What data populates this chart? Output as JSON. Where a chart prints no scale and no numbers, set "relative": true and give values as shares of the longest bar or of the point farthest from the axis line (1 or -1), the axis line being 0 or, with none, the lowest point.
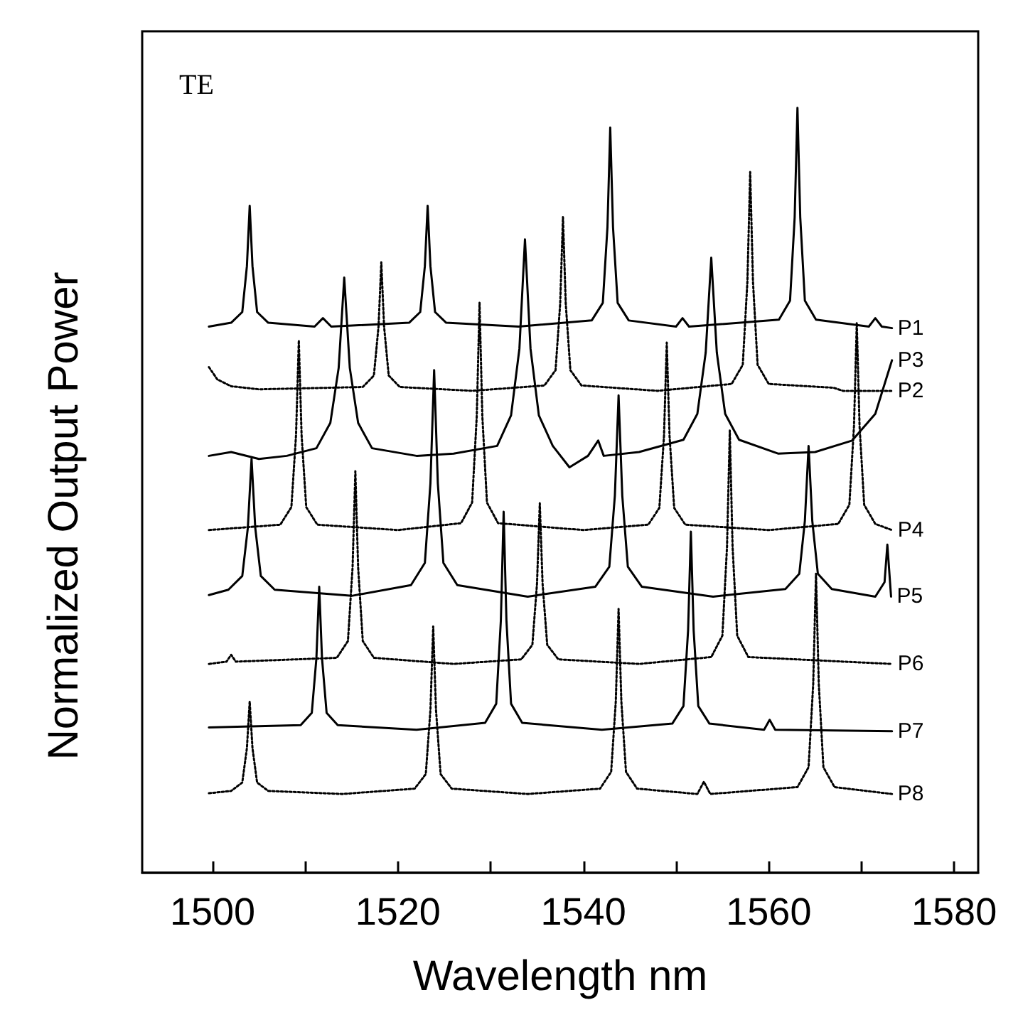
{
  "chart_data": {
    "type": "line",
    "relative": true,
    "xlabel": "Wavelength nm",
    "ylabel": "Normalized Output Power",
    "annotations": [
      "TE"
    ],
    "xlim": [
      1492.4,
      1582.6
    ],
    "xticks": [
      1500,
      {
        "value": 1510,
        "label": null
      },
      1520,
      {
        "value": 1530,
        "label": null
      },
      1540,
      {
        "value": 1550,
        "label": null
      },
      1560,
      {
        "value": 1570,
        "label": null
      },
      1580
    ],
    "grid": false,
    "legend": false,
    "marker": "none",
    "series": [
      {
        "name": "P1",
        "color": "#000000",
        "line_style": "solid",
        "x": [
          1499.6,
          1502.0,
          1503.2,
          1503.7,
          1504.0,
          1504.3,
          1504.8,
          1506.0,
          1511.0,
          1511.9,
          1512.8,
          1521.2,
          1522.4,
          1522.9,
          1523.2,
          1523.5,
          1524.0,
          1525.2,
          1533.0,
          1540.9,
          1542.1,
          1542.6,
          1542.9,
          1543.2,
          1543.7,
          1544.9,
          1550.0,
          1550.7,
          1551.4,
          1561.1,
          1562.3,
          1562.8,
          1563.1,
          1563.4,
          1563.9,
          1565.1,
          1570.8,
          1571.5,
          1572.2,
          1573.3
        ],
        "values": [
          0.714,
          0.719,
          0.733,
          0.793,
          0.872,
          0.793,
          0.733,
          0.719,
          0.714,
          0.725,
          0.714,
          0.719,
          0.733,
          0.793,
          0.872,
          0.793,
          0.733,
          0.719,
          0.714,
          0.722,
          0.745,
          0.844,
          0.974,
          0.844,
          0.745,
          0.722,
          0.714,
          0.725,
          0.714,
          0.723,
          0.748,
          0.857,
          1.0,
          0.857,
          0.748,
          0.723,
          0.714,
          0.725,
          0.714,
          0.712
        ]
      },
      {
        "name": "P2",
        "color": "#000000",
        "line_style": "dotted",
        "x": [
          1499.6,
          1500.5,
          1502.0,
          1505.0,
          1516.2,
          1517.4,
          1517.9,
          1518.2,
          1518.5,
          1519.0,
          1520.2,
          1528.0,
          1535.8,
          1537.0,
          1537.5,
          1537.8,
          1538.1,
          1538.6,
          1539.8,
          1548.0,
          1556.0,
          1557.2,
          1557.7,
          1558.0,
          1558.3,
          1558.8,
          1560.0,
          1567.0,
          1568.0,
          1573.3
        ],
        "values": [
          0.661,
          0.645,
          0.636,
          0.632,
          0.635,
          0.65,
          0.714,
          0.798,
          0.714,
          0.65,
          0.635,
          0.63,
          0.637,
          0.657,
          0.744,
          0.857,
          0.744,
          0.657,
          0.637,
          0.63,
          0.639,
          0.664,
          0.773,
          0.916,
          0.773,
          0.664,
          0.639,
          0.634,
          0.63,
          0.63
        ]
      },
      {
        "name": "P3",
        "color": "#000000",
        "line_style": "solid",
        "x": [
          1499.6,
          1502.0,
          1505.0,
          1508.0,
          1511.2,
          1512.7,
          1513.6,
          1514.2,
          1514.8,
          1515.7,
          1517.2,
          1522.0,
          1526.0,
          1530.7,
          1532.2,
          1533.1,
          1533.7,
          1534.3,
          1535.2,
          1536.7,
          1538.5,
          1540.5,
          1541.6,
          1542.2,
          1546.0,
          1550.8,
          1552.3,
          1553.2,
          1553.8,
          1554.4,
          1555.3,
          1556.8,
          1561.0,
          1565.0,
          1569.0,
          1571.5,
          1573.3
        ],
        "values": [
          0.545,
          0.55,
          0.541,
          0.545,
          0.555,
          0.588,
          0.66,
          0.778,
          0.66,
          0.588,
          0.555,
          0.545,
          0.548,
          0.558,
          0.598,
          0.685,
          0.828,
          0.685,
          0.598,
          0.558,
          0.53,
          0.545,
          0.565,
          0.545,
          0.55,
          0.566,
          0.6,
          0.68,
          0.804,
          0.68,
          0.6,
          0.566,
          0.548,
          0.55,
          0.565,
          0.6,
          0.67
        ]
      },
      {
        "name": "P4",
        "color": "#000000",
        "line_style": "dotted",
        "x": [
          1499.6,
          1507.3,
          1508.5,
          1509.0,
          1509.3,
          1509.6,
          1510.1,
          1511.3,
          1520.0,
          1526.8,
          1528.0,
          1528.5,
          1528.8,
          1529.1,
          1529.6,
          1530.8,
          1540.0,
          1547.0,
          1548.2,
          1548.7,
          1549.0,
          1549.3,
          1549.8,
          1551.0,
          1560.0,
          1567.5,
          1568.7,
          1569.2,
          1569.5,
          1569.8,
          1570.3,
          1571.5,
          1573.3
        ],
        "values": [
          0.448,
          0.455,
          0.478,
          0.572,
          0.696,
          0.572,
          0.478,
          0.455,
          0.448,
          0.457,
          0.484,
          0.597,
          0.745,
          0.597,
          0.484,
          0.457,
          0.448,
          0.455,
          0.477,
          0.571,
          0.693,
          0.571,
          0.477,
          0.455,
          0.448,
          0.456,
          0.481,
          0.584,
          0.719,
          0.584,
          0.481,
          0.456,
          0.448
        ]
      },
      {
        "name": "P5",
        "color": "#000000",
        "line_style": "solid",
        "x": [
          1499.6,
          1501.7,
          1503.2,
          1503.8,
          1504.2,
          1504.6,
          1505.2,
          1506.7,
          1515.0,
          1521.4,
          1522.9,
          1523.5,
          1523.9,
          1524.3,
          1524.9,
          1526.4,
          1534.0,
          1541.3,
          1542.8,
          1543.4,
          1543.8,
          1544.2,
          1544.8,
          1546.3,
          1554.0,
          1561.8,
          1563.3,
          1563.9,
          1564.3,
          1564.7,
          1565.3,
          1566.8,
          1571.5,
          1572.5,
          1572.8,
          1573.2
        ],
        "values": [
          0.363,
          0.37,
          0.388,
          0.451,
          0.541,
          0.451,
          0.388,
          0.37,
          0.362,
          0.376,
          0.405,
          0.509,
          0.657,
          0.509,
          0.405,
          0.376,
          0.361,
          0.374,
          0.4,
          0.493,
          0.624,
          0.493,
          0.4,
          0.374,
          0.361,
          0.371,
          0.391,
          0.46,
          0.558,
          0.46,
          0.391,
          0.371,
          0.361,
          0.38,
          0.429,
          0.361
        ]
      },
      {
        "name": "P6",
        "color": "#000000",
        "line_style": "dotted",
        "x": [
          1499.6,
          1501.5,
          1502.0,
          1502.5,
          1513.4,
          1514.6,
          1515.1,
          1515.4,
          1515.7,
          1516.2,
          1517.4,
          1526.0,
          1533.3,
          1534.5,
          1535.0,
          1535.3,
          1535.6,
          1536.1,
          1537.3,
          1546.0,
          1553.8,
          1555.0,
          1555.5,
          1555.8,
          1556.1,
          1556.6,
          1557.8,
          1573.3
        ],
        "values": [
          0.273,
          0.276,
          0.285,
          0.276,
          0.281,
          0.303,
          0.399,
          0.525,
          0.399,
          0.303,
          0.281,
          0.273,
          0.279,
          0.298,
          0.378,
          0.483,
          0.378,
          0.298,
          0.279,
          0.273,
          0.282,
          0.31,
          0.426,
          0.578,
          0.426,
          0.31,
          0.282,
          0.273
        ]
      },
      {
        "name": "P7",
        "color": "#000000",
        "line_style": "solid",
        "x": [
          1499.6,
          1509.5,
          1510.7,
          1511.2,
          1511.5,
          1511.8,
          1512.3,
          1513.5,
          1522.0,
          1529.4,
          1530.6,
          1531.1,
          1531.4,
          1531.7,
          1532.2,
          1533.4,
          1542.0,
          1549.6,
          1550.8,
          1551.3,
          1551.6,
          1551.9,
          1552.4,
          1553.6,
          1559.5,
          1560.1,
          1560.7,
          1573.3
        ],
        "values": [
          0.19,
          0.193,
          0.209,
          0.281,
          0.374,
          0.281,
          0.209,
          0.193,
          0.187,
          0.196,
          0.221,
          0.33,
          0.472,
          0.33,
          0.221,
          0.196,
          0.187,
          0.195,
          0.218,
          0.317,
          0.446,
          0.317,
          0.218,
          0.195,
          0.187,
          0.2,
          0.187,
          0.185
        ]
      },
      {
        "name": "P8",
        "color": "#000000",
        "line_style": "dotted",
        "x": [
          1499.6,
          1502.0,
          1503.2,
          1503.7,
          1504.0,
          1504.3,
          1504.8,
          1506.0,
          1514.0,
          1521.8,
          1523.0,
          1523.5,
          1523.8,
          1524.1,
          1524.6,
          1525.8,
          1534.0,
          1541.8,
          1543.0,
          1543.5,
          1543.8,
          1544.1,
          1544.6,
          1545.8,
          1552.3,
          1553.0,
          1553.7,
          1563.1,
          1564.3,
          1564.8,
          1565.1,
          1565.4,
          1565.9,
          1567.1,
          1573.3
        ],
        "values": [
          0.104,
          0.107,
          0.118,
          0.163,
          0.224,
          0.163,
          0.118,
          0.107,
          0.103,
          0.11,
          0.129,
          0.213,
          0.322,
          0.213,
          0.129,
          0.11,
          0.103,
          0.11,
          0.132,
          0.224,
          0.345,
          0.224,
          0.132,
          0.11,
          0.103,
          0.119,
          0.103,
          0.112,
          0.138,
          0.247,
          0.391,
          0.247,
          0.138,
          0.112,
          0.103
        ]
      }
    ]
  }
}
